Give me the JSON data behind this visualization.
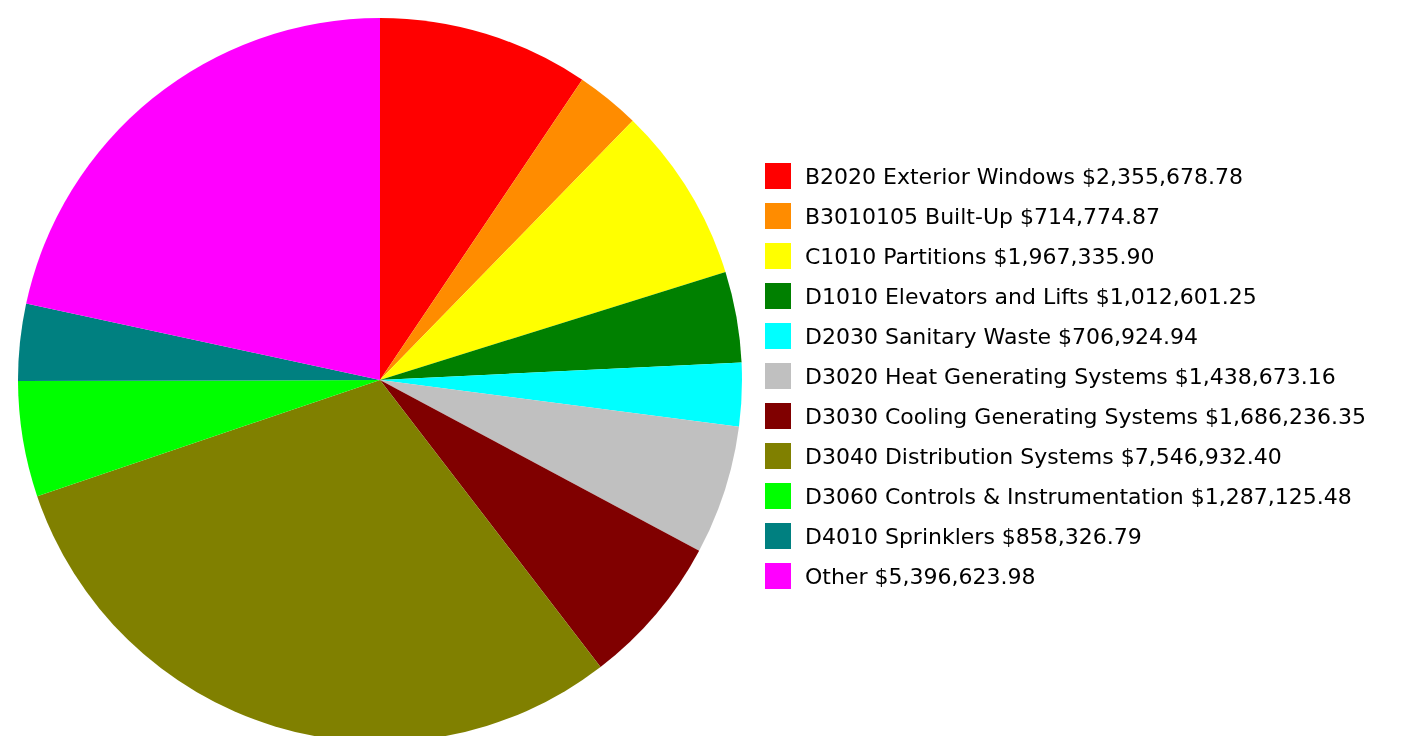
{
  "chart_data": {
    "type": "pie",
    "categories": [
      "B2020 Exterior Windows $2,355,678.78",
      "B3010105 Built-Up $714,774.87",
      "C1010 Partitions $1,967,335.90",
      "D1010 Elevators and Lifts $1,012,601.25",
      "D2030 Sanitary Waste $706,924.94",
      "D3020 Heat Generating Systems $1,438,673.16",
      "D3030 Cooling Generating Systems $1,686,236.35",
      "D3040 Distribution Systems $7,546,932.40",
      "D3060 Controls & Instrumentation $1,287,125.48",
      "D4010 Sprinklers $858,326.79",
      "Other $5,396,623.98"
    ],
    "values": [
      2355678.78,
      714774.87,
      1967335.9,
      1012601.25,
      706924.94,
      1438673.16,
      1686236.35,
      7546932.4,
      1287125.48,
      858326.79,
      5396623.98
    ],
    "colors": [
      "#ff0000",
      "#ff8c00",
      "#ffff00",
      "#008000",
      "#00ffff",
      "#c0c0c0",
      "#800000",
      "#808000",
      "#00ff00",
      "#008080",
      "#ff00ff"
    ],
    "legend": "right"
  }
}
